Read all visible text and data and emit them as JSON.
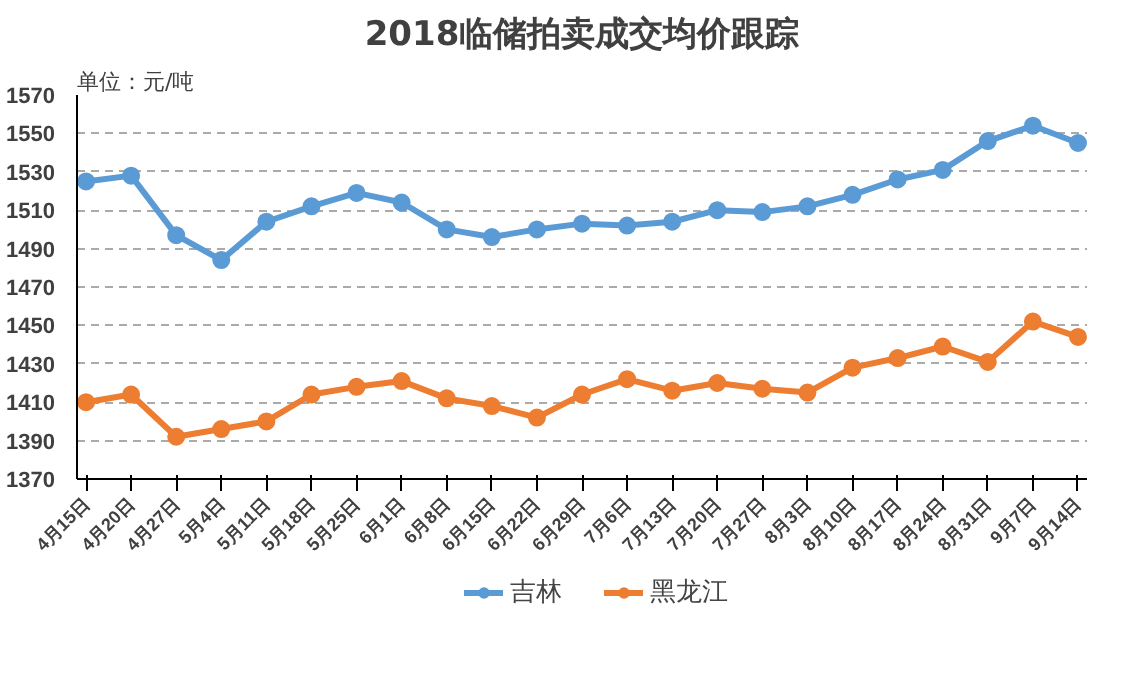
{
  "chart_data": {
    "type": "line",
    "title": "2018临储拍卖成交均价跟踪",
    "annotations": [
      "单位：元/吨"
    ],
    "categories": [
      "4月15日",
      "4月20日",
      "4月27日",
      "5月4日",
      "5月11日",
      "5月18日",
      "5月25日",
      "6月1日",
      "6月8日",
      "6月15日",
      "6月22日",
      "6月29日",
      "7月6日",
      "7月13日",
      "7月20日",
      "7月27日",
      "8月3日",
      "8月10日",
      "8月17日",
      "8月24日",
      "8月31日",
      "9月7日",
      "9月14日"
    ],
    "series": [
      {
        "name": "吉林",
        "color": "#5b9bd5",
        "values": [
          1525,
          1528,
          1497,
          1484,
          1504,
          1512,
          1519,
          1514,
          1500,
          1496,
          1500,
          1503,
          1502,
          1504,
          1510,
          1509,
          1512,
          1518,
          1526,
          1531,
          1546,
          1554,
          1545
        ]
      },
      {
        "name": "黑龙江",
        "color": "#ed7d31",
        "values": [
          1410,
          1414,
          1392,
          1396,
          1400,
          1414,
          1418,
          1421,
          1412,
          1408,
          1402,
          1414,
          1422,
          1416,
          1420,
          1417,
          1415,
          1428,
          1433,
          1439,
          1431,
          1452,
          1444
        ]
      }
    ],
    "ylim": [
      1370,
      1570
    ],
    "yticks": [
      1370,
      1390,
      1410,
      1430,
      1450,
      1470,
      1490,
      1510,
      1530,
      1550,
      1570
    ],
    "grid": "y",
    "legend": "bottom",
    "marker": "circle",
    "line_style": "solid"
  }
}
